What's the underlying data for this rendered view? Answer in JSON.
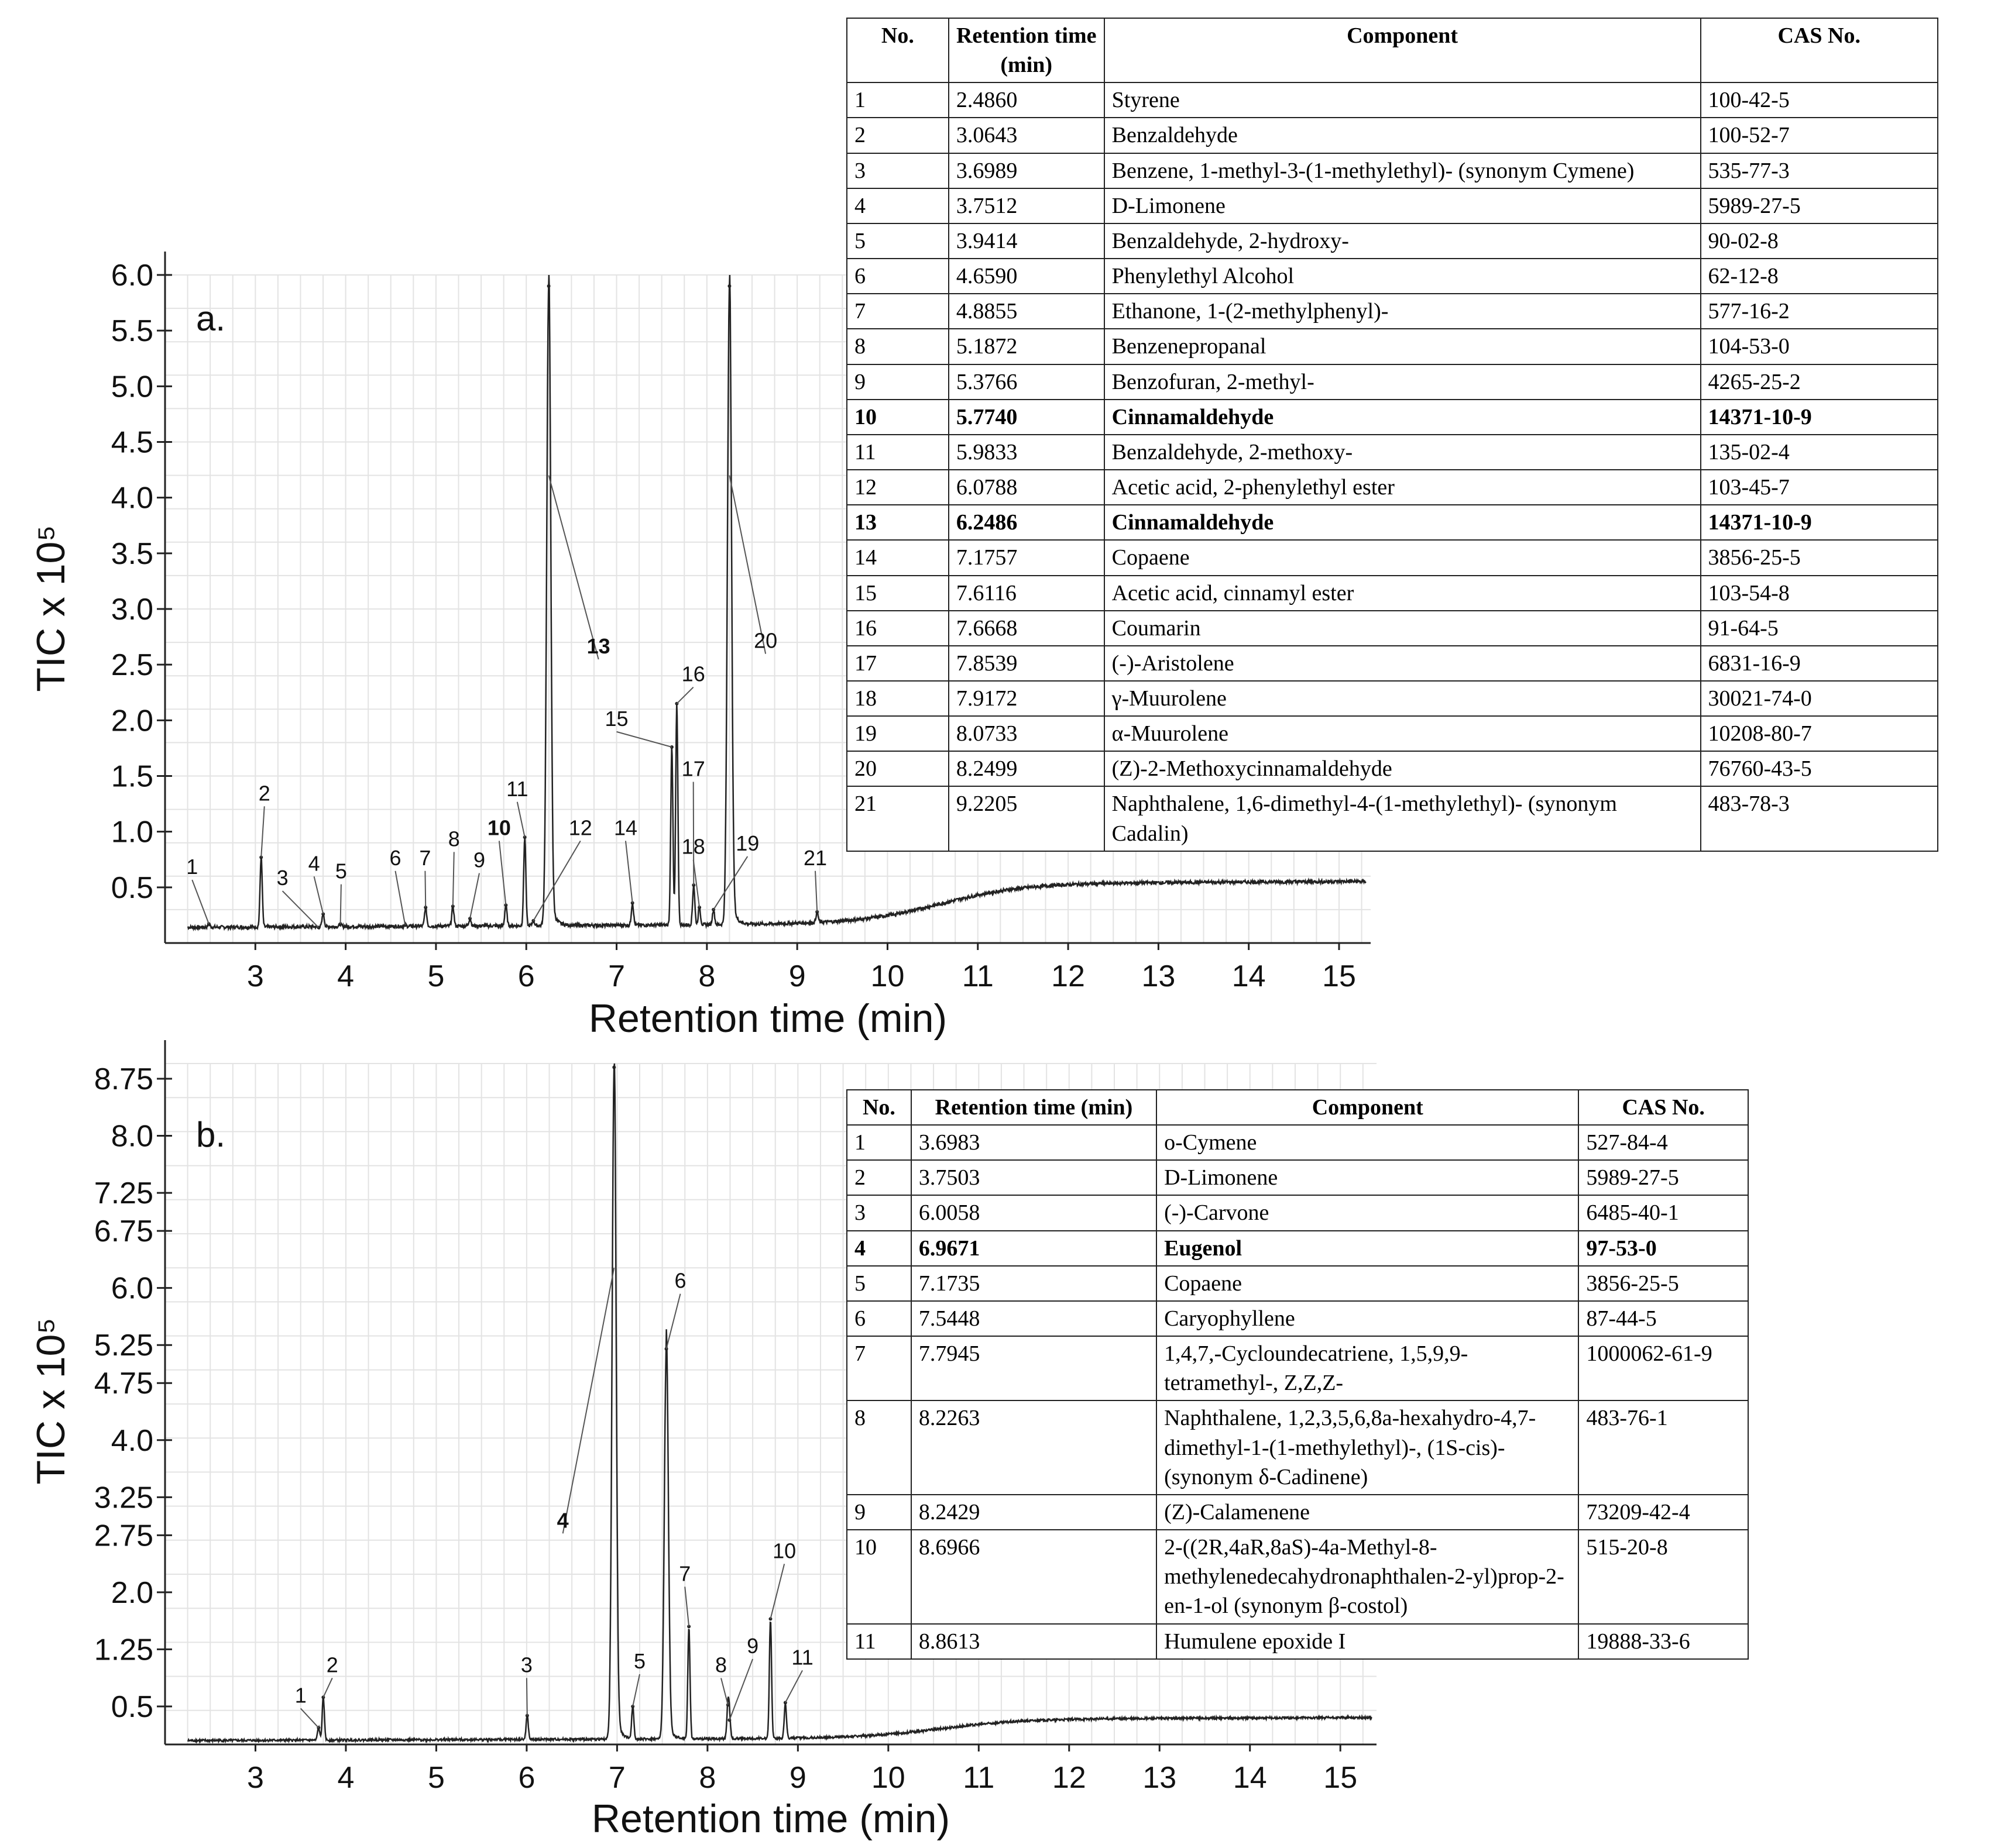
{
  "chart_data": [
    {
      "type": "line",
      "panel": "a.",
      "xlabel": "Retention time (min)",
      "ylabel": "TIC x 10⁵",
      "xlim": [
        2.0,
        15.35
      ],
      "ylim": [
        0.0,
        6.0
      ],
      "x_ticks": [
        "3",
        "4",
        "5",
        "6",
        "7",
        "8",
        "9",
        "10",
        "11",
        "12",
        "13",
        "14",
        "15"
      ],
      "y_ticks": [
        "0.5",
        "1.0",
        "1.5",
        "2.0",
        "2.5",
        "3.0",
        "3.5",
        "4.0",
        "4.5",
        "5.0",
        "5.5",
        "6.0"
      ],
      "peaks": [
        {
          "label": "1",
          "x": 2.486,
          "y": 0.17,
          "label_x": 2.3,
          "label_y": 0.62,
          "bold": false
        },
        {
          "label": "2",
          "x": 3.0643,
          "y": 0.77,
          "label_x": 3.1,
          "label_y": 1.28,
          "bold": false
        },
        {
          "label": "3",
          "x": 3.6989,
          "y": 0.14,
          "label_x": 3.3,
          "label_y": 0.52,
          "bold": false
        },
        {
          "label": "4",
          "x": 3.7512,
          "y": 0.26,
          "label_x": 3.65,
          "label_y": 0.65,
          "bold": false
        },
        {
          "label": "5",
          "x": 3.9414,
          "y": 0.17,
          "label_x": 3.95,
          "label_y": 0.58,
          "bold": false
        },
        {
          "label": "6",
          "x": 4.659,
          "y": 0.16,
          "label_x": 4.55,
          "label_y": 0.7,
          "bold": false
        },
        {
          "label": "7",
          "x": 4.8855,
          "y": 0.32,
          "label_x": 4.88,
          "label_y": 0.7,
          "bold": false
        },
        {
          "label": "8",
          "x": 5.1872,
          "y": 0.33,
          "label_x": 5.2,
          "label_y": 0.87,
          "bold": false
        },
        {
          "label": "9",
          "x": 5.3766,
          "y": 0.22,
          "label_x": 5.48,
          "label_y": 0.68,
          "bold": false
        },
        {
          "label": "10",
          "x": 5.774,
          "y": 0.34,
          "label_x": 5.7,
          "label_y": 0.97,
          "bold": true
        },
        {
          "label": "11",
          "x": 5.9833,
          "y": 0.95,
          "label_x": 5.9,
          "label_y": 1.32,
          "bold": false
        },
        {
          "label": "12",
          "x": 6.0788,
          "y": 0.2,
          "label_x": 6.6,
          "label_y": 0.97,
          "bold": false
        },
        {
          "label": "13",
          "x": 6.2486,
          "y": 5.9,
          "label_x": 6.8,
          "label_y": 2.6,
          "bold": true
        },
        {
          "label": "14",
          "x": 7.1757,
          "y": 0.36,
          "label_x": 7.1,
          "label_y": 0.97,
          "bold": false
        },
        {
          "label": "15",
          "x": 7.6116,
          "y": 1.76,
          "label_x": 7.0,
          "label_y": 1.95,
          "bold": false
        },
        {
          "label": "16",
          "x": 7.6668,
          "y": 2.15,
          "label_x": 7.85,
          "label_y": 2.35,
          "bold": false
        },
        {
          "label": "17",
          "x": 7.8539,
          "y": 0.52,
          "label_x": 7.85,
          "label_y": 1.5,
          "bold": false
        },
        {
          "label": "18",
          "x": 7.9172,
          "y": 0.32,
          "label_x": 7.85,
          "label_y": 0.8,
          "bold": false
        },
        {
          "label": "19",
          "x": 8.0733,
          "y": 0.3,
          "label_x": 8.45,
          "label_y": 0.83,
          "bold": false
        },
        {
          "label": "20",
          "x": 8.2499,
          "y": 5.9,
          "label_x": 8.65,
          "label_y": 2.65,
          "bold": false
        },
        {
          "label": "21",
          "x": 9.2205,
          "y": 0.28,
          "label_x": 9.2,
          "label_y": 0.7,
          "bold": false
        }
      ],
      "table": {
        "headers": [
          "No.",
          "Retention time (min)",
          "Component",
          "CAS No."
        ],
        "rows": [
          {
            "no": "1",
            "rt": "2.4860",
            "component": "Styrene",
            "cas": "100-42-5",
            "bold": false
          },
          {
            "no": "2",
            "rt": "3.0643",
            "component": "Benzaldehyde",
            "cas": "100-52-7",
            "bold": false
          },
          {
            "no": "3",
            "rt": "3.6989",
            "component": "Benzene, 1-methyl-3-(1-methylethyl)- (synonym Cymene)",
            "cas": "535-77-3",
            "bold": false
          },
          {
            "no": "4",
            "rt": "3.7512",
            "component": "D-Limonene",
            "cas": "5989-27-5",
            "bold": false
          },
          {
            "no": "5",
            "rt": "3.9414",
            "component": "Benzaldehyde, 2-hydroxy-",
            "cas": "90-02-8",
            "bold": false
          },
          {
            "no": "6",
            "rt": "4.6590",
            "component": "Phenylethyl Alcohol",
            "cas": "62-12-8",
            "bold": false
          },
          {
            "no": "7",
            "rt": "4.8855",
            "component": "Ethanone, 1-(2-methylphenyl)-",
            "cas": "577-16-2",
            "bold": false
          },
          {
            "no": "8",
            "rt": "5.1872",
            "component": "Benzenepropanal",
            "cas": "104-53-0",
            "bold": false
          },
          {
            "no": "9",
            "rt": "5.3766",
            "component": "Benzofuran, 2-methyl-",
            "cas": "4265-25-2",
            "bold": false
          },
          {
            "no": "10",
            "rt": "5.7740",
            "component": "Cinnamaldehyde",
            "cas": "14371-10-9",
            "bold": true
          },
          {
            "no": "11",
            "rt": "5.9833",
            "component": "Benzaldehyde, 2-methoxy-",
            "cas": "135-02-4",
            "bold": false
          },
          {
            "no": "12",
            "rt": "6.0788",
            "component": "Acetic acid, 2-phenylethyl ester",
            "cas": "103-45-7",
            "bold": false
          },
          {
            "no": "13",
            "rt": "6.2486",
            "component": "Cinnamaldehyde",
            "cas": "14371-10-9",
            "bold": true
          },
          {
            "no": "14",
            "rt": "7.1757",
            "component": "Copaene",
            "cas": "3856-25-5",
            "bold": false
          },
          {
            "no": "15",
            "rt": "7.6116",
            "component": "Acetic acid, cinnamyl ester",
            "cas": "103-54-8",
            "bold": false
          },
          {
            "no": "16",
            "rt": "7.6668",
            "component": "Coumarin",
            "cas": "91-64-5",
            "bold": false
          },
          {
            "no": "17",
            "rt": "7.8539",
            "component": "(-)-Aristolene",
            "cas": "6831-16-9",
            "bold": false
          },
          {
            "no": "18",
            "rt": "7.9172",
            "component": "γ-Muurolene",
            "cas": "30021-74-0",
            "bold": false
          },
          {
            "no": "19",
            "rt": "8.0733",
            "component": "α-Muurolene",
            "cas": "10208-80-7",
            "bold": false
          },
          {
            "no": "20",
            "rt": "8.2499",
            "component": "(Z)-2-Methoxycinnamaldehyde",
            "cas": "76760-43-5",
            "bold": false
          },
          {
            "no": "21",
            "rt": "9.2205",
            "component": "Naphthalene, 1,6-dimethyl-4-(1-methylethyl)- (synonym Cadalin)",
            "cas": "483-78-3",
            "bold": false
          }
        ]
      }
    },
    {
      "type": "line",
      "panel": "b.",
      "xlabel": "Retention time (min)",
      "ylabel": "TIC x 10⁵",
      "xlim": [
        2.0,
        15.4
      ],
      "ylim": [
        0.0,
        8.95
      ],
      "x_ticks": [
        "3",
        "4",
        "5",
        "6",
        "7",
        "8",
        "9",
        "10",
        "11",
        "12",
        "13",
        "14",
        "15"
      ],
      "y_ticks": [
        "0.5",
        "1.25",
        "2.0",
        "2.75",
        "3.25",
        "4.0",
        "4.75",
        "5.25",
        "6.0",
        "6.75",
        "7.25",
        "8.0",
        "8.75"
      ],
      "peaks": [
        {
          "label": "1",
          "x": 3.6983,
          "y": 0.22,
          "label_x": 3.5,
          "label_y": 0.55,
          "bold": false
        },
        {
          "label": "2",
          "x": 3.7503,
          "y": 0.62,
          "label_x": 3.85,
          "label_y": 0.95,
          "bold": false
        },
        {
          "label": "3",
          "x": 6.0058,
          "y": 0.38,
          "label_x": 6.0,
          "label_y": 0.95,
          "bold": false
        },
        {
          "label": "4",
          "x": 6.9671,
          "y": 8.9,
          "label_x": 6.4,
          "label_y": 2.85,
          "bold": true
        },
        {
          "label": "5",
          "x": 7.1735,
          "y": 0.5,
          "label_x": 7.25,
          "label_y": 1.0,
          "bold": false
        },
        {
          "label": "6",
          "x": 7.5448,
          "y": 5.2,
          "label_x": 7.7,
          "label_y": 6.0,
          "bold": false
        },
        {
          "label": "7",
          "x": 7.7945,
          "y": 1.55,
          "label_x": 7.75,
          "label_y": 2.15,
          "bold": false
        },
        {
          "label": "8",
          "x": 8.2263,
          "y": 0.52,
          "label_x": 8.15,
          "label_y": 0.95,
          "bold": false
        },
        {
          "label": "9",
          "x": 8.2429,
          "y": 0.32,
          "label_x": 8.5,
          "label_y": 1.2,
          "bold": false
        },
        {
          "label": "10",
          "x": 8.6966,
          "y": 1.65,
          "label_x": 8.85,
          "label_y": 2.45,
          "bold": false
        },
        {
          "label": "11",
          "x": 8.8613,
          "y": 0.55,
          "label_x": 9.05,
          "label_y": 1.05,
          "bold": false
        }
      ],
      "table": {
        "headers": [
          "No.",
          "Retention time (min)",
          "Component",
          "CAS No."
        ],
        "rows": [
          {
            "no": "1",
            "rt": "3.6983",
            "component": "o-Cymene",
            "cas": "527-84-4",
            "bold": false
          },
          {
            "no": "2",
            "rt": "3.7503",
            "component": "D-Limonene",
            "cas": "5989-27-5",
            "bold": false
          },
          {
            "no": "3",
            "rt": "6.0058",
            "component": "(-)-Carvone",
            "cas": "6485-40-1",
            "bold": false
          },
          {
            "no": "4",
            "rt": "6.9671",
            "component": "Eugenol",
            "cas": "97-53-0",
            "bold": true
          },
          {
            "no": "5",
            "rt": "7.1735",
            "component": "Copaene",
            "cas": "3856-25-5",
            "bold": false
          },
          {
            "no": "6",
            "rt": "7.5448",
            "component": "Caryophyllene",
            "cas": "87-44-5",
            "bold": false
          },
          {
            "no": "7",
            "rt": "7.7945",
            "component": "1,4,7,-Cycloundecatriene, 1,5,9,9-tetramethyl-, Z,Z,Z-",
            "cas": "1000062-61-9",
            "bold": false
          },
          {
            "no": "8",
            "rt": "8.2263",
            "component": "Naphthalene, 1,2,3,5,6,8a-hexahydro-4,7-dimethyl-1-(1-methylethyl)-, (1S-cis)- (synonym δ-Cadinene)",
            "cas": "483-76-1",
            "bold": false
          },
          {
            "no": "9",
            "rt": "8.2429",
            "component": "(Z)-Calamenene",
            "cas": "73209-42-4",
            "bold": false
          },
          {
            "no": "10",
            "rt": "8.6966",
            "component": "2-((2R,4aR,8aS)-4a-Methyl-8-methylenedecahydronaphthalen-2-yl)prop-2-en-1-ol (synonym β-costol)",
            "cas": "515-20-8",
            "bold": false
          },
          {
            "no": "11",
            "rt": "8.8613",
            "component": "Humulene epoxide I",
            "cas": "19888-33-6",
            "bold": false
          }
        ]
      }
    }
  ]
}
